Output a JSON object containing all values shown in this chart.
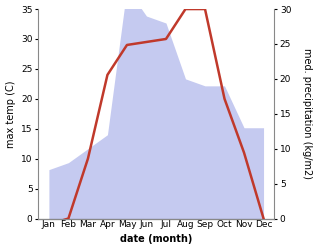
{
  "months": [
    "Jan",
    "Feb",
    "Mar",
    "Apr",
    "May",
    "Jun",
    "Jul",
    "Aug",
    "Sep",
    "Oct",
    "Nov",
    "Dec"
  ],
  "temperature": [
    -1,
    0,
    10,
    24,
    29,
    29.5,
    30,
    35,
    35,
    20,
    11,
    0
  ],
  "precipitation": [
    7,
    8,
    10,
    12,
    33,
    29,
    28,
    20,
    19,
    19,
    13,
    13
  ],
  "temp_color": "#c0392b",
  "precip_fill_color": "#c5caf0",
  "temp_ylim": [
    0,
    35
  ],
  "precip_ylim": [
    0,
    30
  ],
  "temp_yticks": [
    0,
    5,
    10,
    15,
    20,
    25,
    30,
    35
  ],
  "precip_yticks": [
    0,
    5,
    10,
    15,
    20,
    25,
    30
  ],
  "xlabel": "date (month)",
  "ylabel_left": "max temp (C)",
  "ylabel_right": "med. precipitation (kg/m2)",
  "bg_color": "#ffffff",
  "label_fontsize": 7,
  "tick_fontsize": 6.5
}
